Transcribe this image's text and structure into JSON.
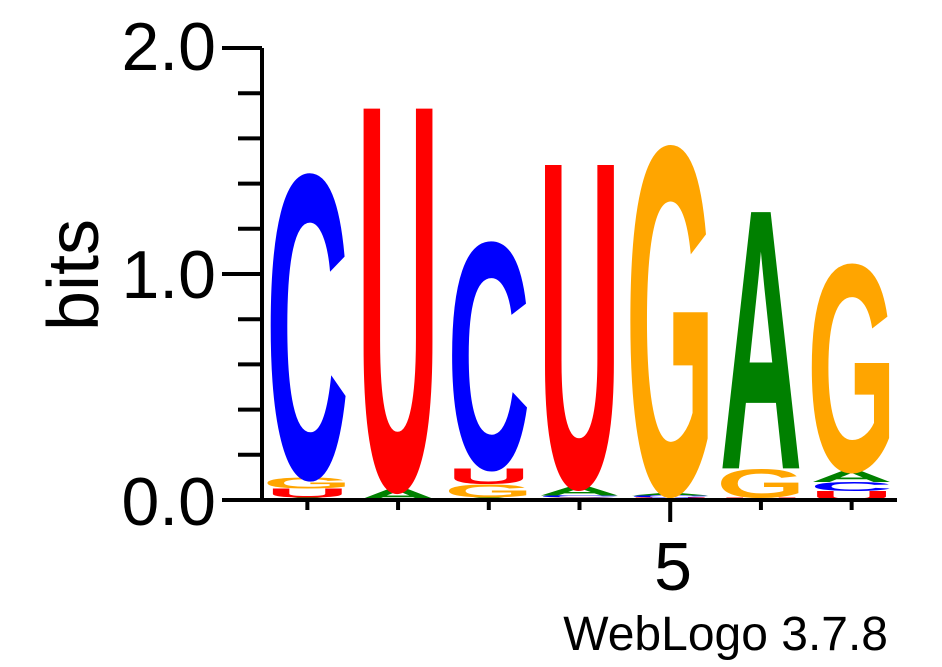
{
  "chart_data": {
    "type": "sequence_logo",
    "ylabel": "bits",
    "ylim": [
      0,
      2.0
    ],
    "yticks": [
      "0.0",
      "1.0",
      "2.0"
    ],
    "xtick_labels": [
      "5"
    ],
    "footer": "WebLogo 3.7.8",
    "colors": {
      "A": "#008000",
      "C": "#0000ff",
      "G": "#ffa500",
      "U": "#ff0000"
    },
    "positions": [
      {
        "index": 1,
        "stack": [
          {
            "letter": "A",
            "bits": 0.01
          },
          {
            "letter": "U",
            "bits": 0.04
          },
          {
            "letter": "G",
            "bits": 0.05
          },
          {
            "letter": "C",
            "bits": 1.38
          }
        ]
      },
      {
        "index": 2,
        "stack": [
          {
            "letter": "A",
            "bits": 0.05
          },
          {
            "letter": "U",
            "bits": 1.75
          }
        ]
      },
      {
        "index": 3,
        "stack": [
          {
            "letter": "A",
            "bits": 0.01
          },
          {
            "letter": "G",
            "bits": 0.06
          },
          {
            "letter": "U",
            "bits": 0.07
          },
          {
            "letter": "C",
            "bits": 1.03
          }
        ]
      },
      {
        "index": 4,
        "stack": [
          {
            "letter": "G",
            "bits": 0.01
          },
          {
            "letter": "C",
            "bits": 0.01
          },
          {
            "letter": "A",
            "bits": 0.04
          },
          {
            "letter": "U",
            "bits": 1.48
          }
        ]
      },
      {
        "index": 5,
        "stack": [
          {
            "letter": "U",
            "bits": 0.01
          },
          {
            "letter": "C",
            "bits": 0.01
          },
          {
            "letter": "A",
            "bits": 0.01
          },
          {
            "letter": "G",
            "bits": 1.58
          }
        ]
      },
      {
        "index": 6,
        "stack": [
          {
            "letter": "U",
            "bits": 0.01
          },
          {
            "letter": "G",
            "bits": 0.13
          },
          {
            "letter": "A",
            "bits": 1.18
          }
        ]
      },
      {
        "index": 7,
        "stack": [
          {
            "letter": "U",
            "bits": 0.04
          },
          {
            "letter": "C",
            "bits": 0.04
          },
          {
            "letter": "A",
            "bits": 0.05
          },
          {
            "letter": "G",
            "bits": 0.94
          }
        ]
      }
    ]
  }
}
